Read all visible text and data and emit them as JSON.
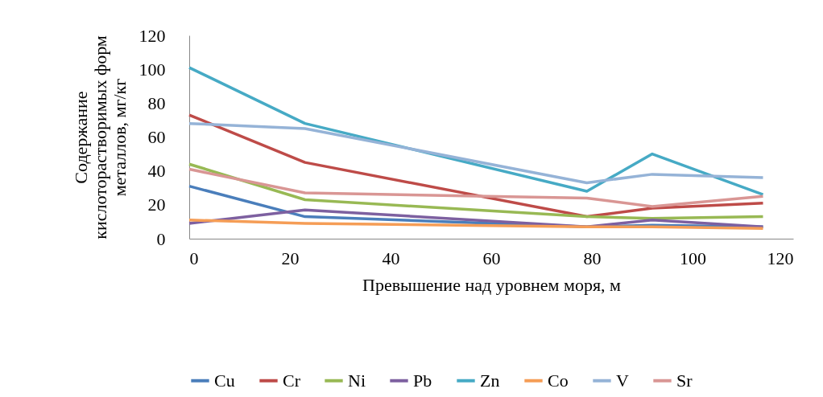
{
  "chart_data": {
    "type": "line",
    "xlabel": "Превышение над уровнем моря, м",
    "ylabel": "Содержание кислоторастворимых форм металлов, мг/кг",
    "x": [
      0,
      23,
      79,
      92,
      114
    ],
    "xlim": [
      0,
      120
    ],
    "xticks": [
      0,
      20,
      40,
      60,
      80,
      100,
      120
    ],
    "ylim": [
      0,
      120
    ],
    "yticks": [
      0,
      20,
      40,
      60,
      80,
      100,
      120
    ],
    "grid": false,
    "legend": "bottom",
    "marker": "none",
    "line_style": "solid",
    "series": [
      {
        "name": "Cu",
        "color": "#4a7ebb",
        "values": [
          31,
          13,
          7,
          8,
          7
        ]
      },
      {
        "name": "Cr",
        "color": "#be4b48",
        "values": [
          73,
          45,
          13,
          18,
          21
        ]
      },
      {
        "name": "Ni",
        "color": "#98b954",
        "values": [
          44,
          23,
          13,
          12,
          13
        ]
      },
      {
        "name": "Pb",
        "color": "#7d60a0",
        "values": [
          9,
          17,
          7,
          11,
          7
        ]
      },
      {
        "name": "Zn",
        "color": "#46aac5",
        "values": [
          101,
          68,
          28,
          50,
          26
        ]
      },
      {
        "name": "Co",
        "color": "#f59d56",
        "values": [
          11,
          9,
          7,
          7,
          6
        ]
      },
      {
        "name": "V",
        "color": "#95b3d7",
        "values": [
          68,
          65,
          33,
          38,
          36
        ]
      },
      {
        "name": "Sr",
        "color": "#d99694",
        "values": [
          41,
          27,
          24,
          19,
          25
        ]
      }
    ]
  }
}
